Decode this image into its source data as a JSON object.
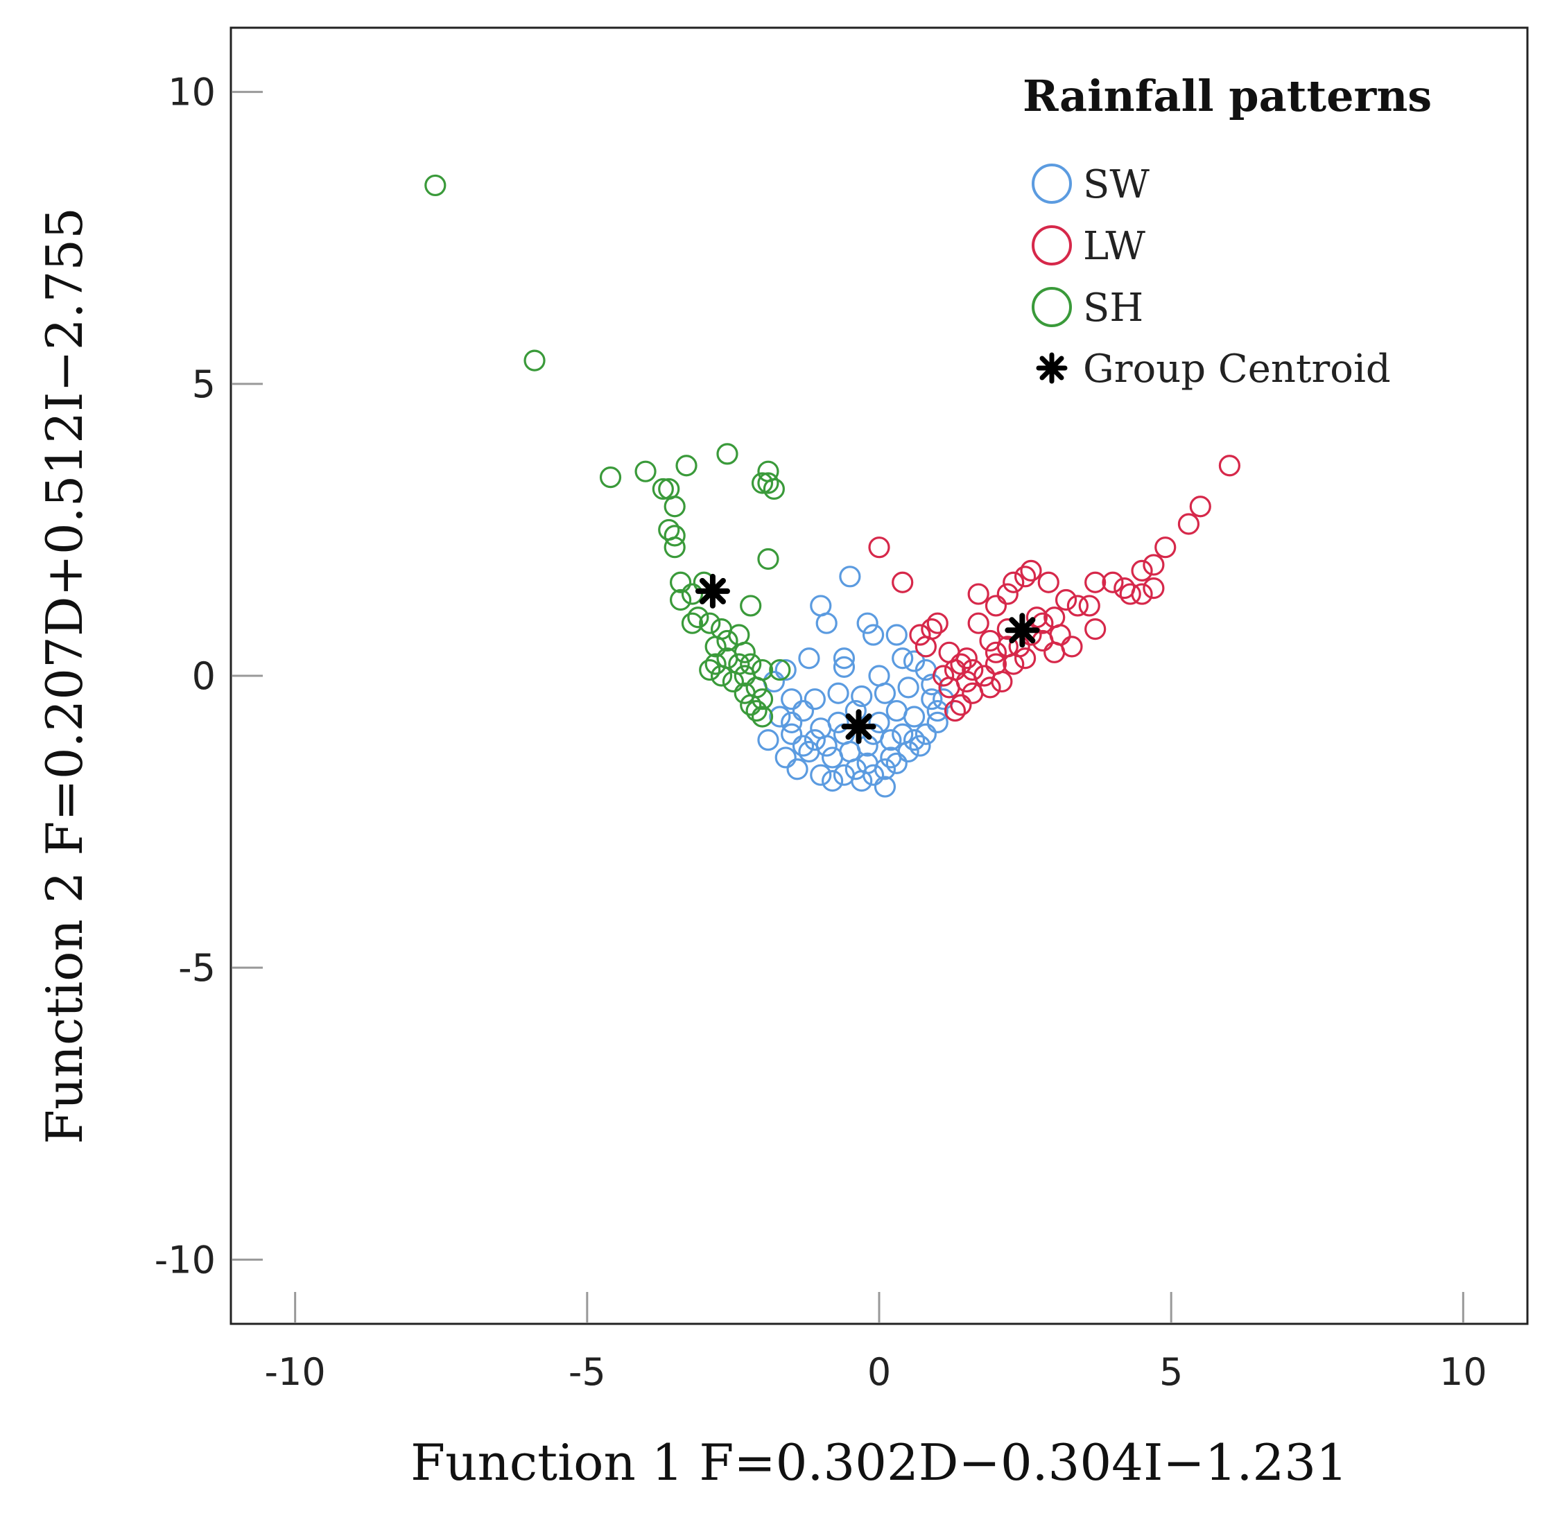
{
  "chart_data": {
    "type": "scatter",
    "title": "",
    "xlabel": "Function 1 F=0.302D−0.304I−1.231",
    "ylabel": "Function 2 F=0.207D+0.512I−2.755",
    "xlim": [
      -11.1,
      11.1
    ],
    "ylim": [
      -11.1,
      11.1
    ],
    "xticks": [
      -10,
      -5,
      0,
      5,
      10
    ],
    "yticks": [
      10,
      5,
      0,
      -5,
      -10
    ],
    "xtick_labels": [
      "-10",
      "-5",
      "0",
      "5",
      "10"
    ],
    "ytick_labels": [
      "10",
      "5",
      "0",
      "-5",
      "-10"
    ],
    "grid": false,
    "legend": {
      "title": "Rainfall patterns",
      "position": "top-right",
      "entries": [
        "SW",
        "LW",
        "SH",
        "Group Centroid"
      ]
    },
    "series": [
      {
        "name": "SW",
        "color": "#5b9be0",
        "marker": "open-circle",
        "points": [
          [
            -0.5,
            1.7
          ],
          [
            -1.0,
            1.2
          ],
          [
            -0.9,
            0.9
          ],
          [
            -0.2,
            0.9
          ],
          [
            0.3,
            0.7
          ],
          [
            -0.1,
            0.7
          ],
          [
            -0.6,
            0.3
          ],
          [
            -0.6,
            0.15
          ],
          [
            0.0,
            0.0
          ],
          [
            0.4,
            0.3
          ],
          [
            0.6,
            0.25
          ],
          [
            0.8,
            0.1
          ],
          [
            -1.2,
            0.3
          ],
          [
            -1.6,
            0.1
          ],
          [
            -1.8,
            -0.1
          ],
          [
            -1.5,
            -0.4
          ],
          [
            -1.1,
            -0.4
          ],
          [
            -0.7,
            -0.3
          ],
          [
            -0.3,
            -0.35
          ],
          [
            0.1,
            -0.3
          ],
          [
            0.5,
            -0.2
          ],
          [
            0.9,
            -0.15
          ],
          [
            1.1,
            -0.4
          ],
          [
            -1.9,
            -1.1
          ],
          [
            -1.7,
            -0.7
          ],
          [
            -1.5,
            -1.0
          ],
          [
            -1.3,
            -0.6
          ],
          [
            -1.2,
            -1.3
          ],
          [
            -1.0,
            -0.9
          ],
          [
            -0.8,
            -1.4
          ],
          [
            -0.6,
            -1.0
          ],
          [
            -0.4,
            -1.6
          ],
          [
            -0.2,
            -1.2
          ],
          [
            0.0,
            -0.8
          ],
          [
            0.2,
            -1.4
          ],
          [
            0.4,
            -1.0
          ],
          [
            0.6,
            -0.7
          ],
          [
            0.8,
            -1.0
          ],
          [
            1.0,
            -0.6
          ],
          [
            -1.6,
            -1.4
          ],
          [
            -1.4,
            -1.6
          ],
          [
            -1.0,
            -1.7
          ],
          [
            -0.8,
            -1.8
          ],
          [
            -0.6,
            -1.7
          ],
          [
            -0.3,
            -1.8
          ],
          [
            -0.1,
            -1.7
          ],
          [
            0.1,
            -1.6
          ],
          [
            0.3,
            -1.5
          ],
          [
            0.5,
            -1.3
          ],
          [
            0.7,
            -1.2
          ],
          [
            -1.1,
            -1.1
          ],
          [
            -0.9,
            -1.2
          ],
          [
            -0.5,
            -1.3
          ],
          [
            -0.1,
            -1.0
          ],
          [
            0.3,
            -0.6
          ],
          [
            -1.3,
            -1.2
          ],
          [
            -0.7,
            -0.8
          ],
          [
            0.2,
            -1.1
          ],
          [
            0.6,
            -1.1
          ],
          [
            -0.4,
            -0.6
          ],
          [
            0.9,
            -0.4
          ],
          [
            1.0,
            -0.8
          ],
          [
            -1.5,
            -0.8
          ],
          [
            -0.2,
            -1.5
          ],
          [
            0.1,
            -1.9
          ]
        ]
      },
      {
        "name": "LW",
        "color": "#d6284a",
        "marker": "open-circle",
        "points": [
          [
            6.0,
            3.6
          ],
          [
            5.5,
            2.9
          ],
          [
            5.3,
            2.6
          ],
          [
            4.9,
            2.2
          ],
          [
            4.7,
            1.9
          ],
          [
            4.5,
            1.8
          ],
          [
            4.7,
            1.5
          ],
          [
            4.5,
            1.4
          ],
          [
            4.3,
            1.4
          ],
          [
            4.2,
            1.5
          ],
          [
            4.0,
            1.6
          ],
          [
            3.7,
            1.6
          ],
          [
            3.6,
            1.2
          ],
          [
            3.7,
            0.8
          ],
          [
            3.4,
            1.2
          ],
          [
            3.2,
            1.3
          ],
          [
            3.0,
            1.0
          ],
          [
            2.9,
            1.6
          ],
          [
            2.6,
            1.8
          ],
          [
            2.5,
            1.7
          ],
          [
            2.3,
            1.6
          ],
          [
            2.2,
            1.4
          ],
          [
            2.0,
            1.2
          ],
          [
            1.7,
            1.4
          ],
          [
            2.7,
            1.0
          ],
          [
            2.8,
            0.6
          ],
          [
            3.0,
            0.4
          ],
          [
            3.3,
            0.5
          ],
          [
            2.5,
            0.3
          ],
          [
            2.2,
            0.5
          ],
          [
            2.0,
            0.2
          ],
          [
            1.9,
            0.6
          ],
          [
            1.7,
            0.9
          ],
          [
            1.5,
            0.3
          ],
          [
            1.3,
            0.1
          ],
          [
            1.2,
            -0.2
          ],
          [
            1.4,
            -0.5
          ],
          [
            1.6,
            -0.3
          ],
          [
            1.8,
            0.0
          ],
          [
            2.1,
            -0.1
          ],
          [
            1.3,
            -0.6
          ],
          [
            1.1,
            0.0
          ],
          [
            0.8,
            0.5
          ],
          [
            0.9,
            0.8
          ],
          [
            0.7,
            0.7
          ],
          [
            1.0,
            0.9
          ],
          [
            0.4,
            1.6
          ],
          [
            0.0,
            2.2
          ],
          [
            2.4,
            0.5
          ],
          [
            2.6,
            0.7
          ],
          [
            2.8,
            0.9
          ],
          [
            3.1,
            0.7
          ],
          [
            2.2,
            0.8
          ],
          [
            2.0,
            0.4
          ],
          [
            1.6,
            0.1
          ],
          [
            1.4,
            0.2
          ],
          [
            1.2,
            0.4
          ],
          [
            2.3,
            0.2
          ],
          [
            1.9,
            -0.2
          ],
          [
            1.5,
            -0.1
          ]
        ]
      },
      {
        "name": "SH",
        "color": "#3a9a3a",
        "marker": "open-circle",
        "points": [
          [
            -7.6,
            8.4
          ],
          [
            -5.9,
            5.4
          ],
          [
            -4.6,
            3.4
          ],
          [
            -4.0,
            3.5
          ],
          [
            -3.7,
            3.2
          ],
          [
            -3.6,
            3.2
          ],
          [
            -3.3,
            3.6
          ],
          [
            -2.6,
            3.8
          ],
          [
            -3.5,
            2.9
          ],
          [
            -3.6,
            2.5
          ],
          [
            -3.5,
            2.4
          ],
          [
            -3.5,
            2.2
          ],
          [
            -1.9,
            3.5
          ],
          [
            -1.9,
            3.3
          ],
          [
            -1.8,
            3.2
          ],
          [
            -2.0,
            3.3
          ],
          [
            -1.9,
            2.0
          ],
          [
            -3.4,
            1.6
          ],
          [
            -3.2,
            1.4
          ],
          [
            -3.0,
            1.6
          ],
          [
            -3.4,
            1.3
          ],
          [
            -2.2,
            1.2
          ],
          [
            -3.1,
            1.0
          ],
          [
            -2.9,
            0.9
          ],
          [
            -2.7,
            0.8
          ],
          [
            -2.4,
            0.7
          ],
          [
            -2.8,
            0.5
          ],
          [
            -2.6,
            0.3
          ],
          [
            -2.3,
            0.4
          ],
          [
            -2.2,
            0.2
          ],
          [
            -2.0,
            0.1
          ],
          [
            -2.3,
            0.0
          ],
          [
            -2.5,
            -0.1
          ],
          [
            -2.1,
            -0.2
          ],
          [
            -2.0,
            -0.4
          ],
          [
            -2.2,
            -0.5
          ],
          [
            -2.1,
            -0.6
          ],
          [
            -2.0,
            -0.7
          ],
          [
            -1.7,
            0.1
          ],
          [
            -2.8,
            0.2
          ],
          [
            -3.2,
            0.9
          ],
          [
            -2.6,
            0.6
          ],
          [
            -2.4,
            0.2
          ],
          [
            -2.7,
            0.0
          ],
          [
            -2.3,
            -0.3
          ],
          [
            -2.9,
            0.1
          ]
        ]
      }
    ],
    "centroids": [
      {
        "name": "SH",
        "x": -2.85,
        "y": 1.45
      },
      {
        "name": "SW",
        "x": -0.35,
        "y": -0.87
      },
      {
        "name": "LW",
        "x": 2.45,
        "y": 0.78
      }
    ]
  }
}
